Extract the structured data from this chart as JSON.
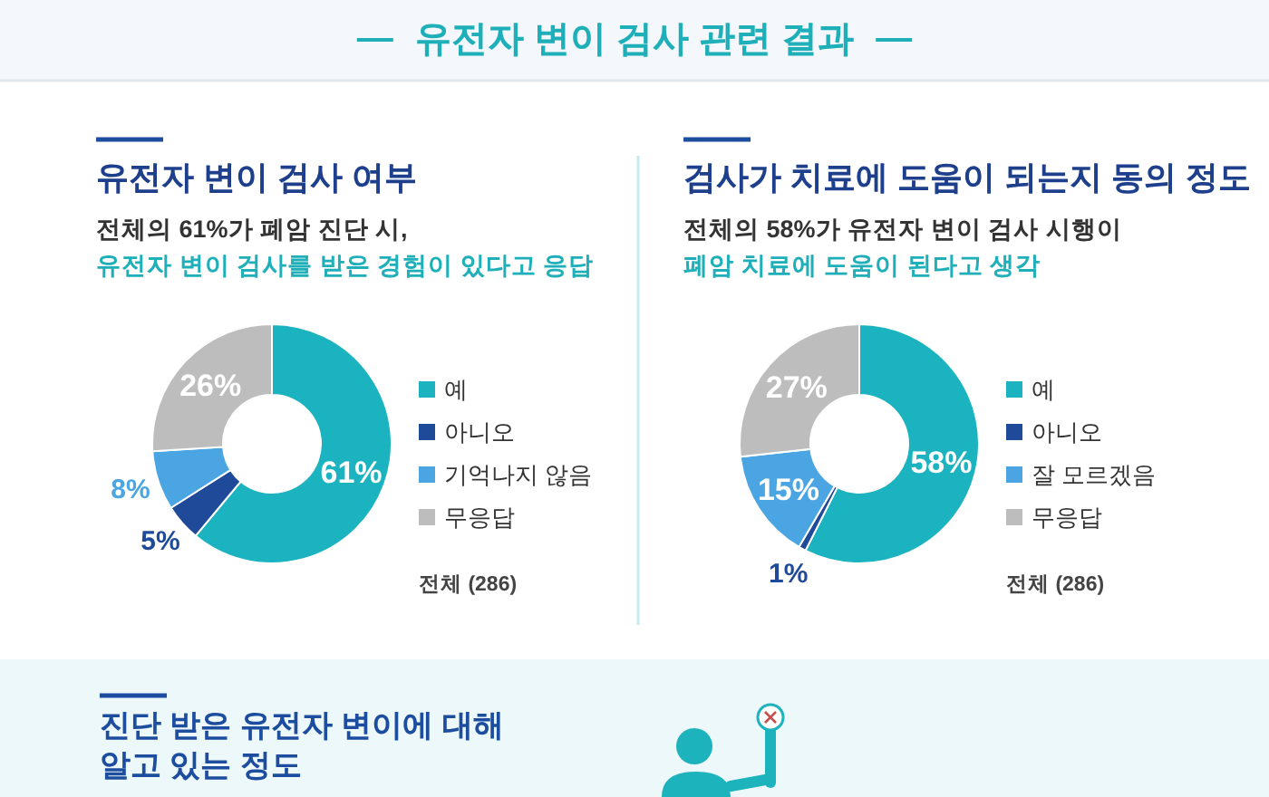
{
  "chart_data": [
    {
      "type": "other",
      "title": "유전자 변이 검사 관련 결과"
    },
    {
      "type": "donut",
      "title": "유전자 변이 검사 여부",
      "subtitle": "전체의 61%가 폐암 진단 시,\n유전자 변이 검사를 받은 경험이 있다고 응답",
      "categories": [
        "예",
        "아니오",
        "기억나지 않음",
        "무응답"
      ],
      "values": [
        61,
        5,
        8,
        26
      ],
      "colors": [
        "#1bb3bf",
        "#1f4a9a",
        "#4ba5e3",
        "#bdbdbd"
      ],
      "value_labels": [
        "61%",
        "5%",
        "8%",
        "26%"
      ],
      "legend": "right",
      "annotations": [
        "전체 (286)"
      ]
    },
    {
      "type": "donut",
      "title": "검사가 치료에 도움이 되는지 동의 정도",
      "subtitle": "전체의 58%가 유전자 변이 검사 시행이\n폐암 치료에 도움이 된다고 생각",
      "categories": [
        "예",
        "아니오",
        "잘 모르겠음",
        "무응답"
      ],
      "values": [
        58,
        1,
        15,
        27
      ],
      "colors": [
        "#1bb3bf",
        "#1f4a9a",
        "#4ba5e3",
        "#bdbdbd"
      ],
      "value_labels": [
        "58%",
        "1%",
        "15%",
        "27%"
      ],
      "legend": "right",
      "annotations": [
        "전체 (286)"
      ]
    },
    {
      "type": "other",
      "title": "진단 받은 유전자 변이에 대해\n알고 있는 정도"
    }
  ]
}
